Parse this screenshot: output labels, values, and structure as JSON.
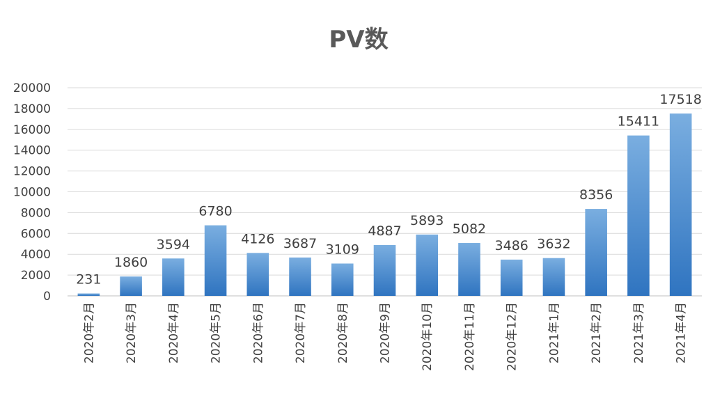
{
  "chart_data": {
    "type": "bar",
    "title": "PV数",
    "xlabel": "",
    "ylabel": "",
    "categories": [
      "2020年2月",
      "2020年3月",
      "2020年4月",
      "2020年5月",
      "2020年6月",
      "2020年7月",
      "2020年8月",
      "2020年9月",
      "2020年10月",
      "2020年11月",
      "2020年12月",
      "2021年1月",
      "2021年2月",
      "2021年3月",
      "2021年4月"
    ],
    "values": [
      231,
      1860,
      3594,
      6780,
      4126,
      3687,
      3109,
      4887,
      5893,
      5082,
      3486,
      3632,
      8356,
      15411,
      17518
    ],
    "ylim": [
      0,
      20000
    ],
    "yticks": [
      0,
      2000,
      4000,
      6000,
      8000,
      10000,
      12000,
      14000,
      16000,
      18000,
      20000
    ],
    "grid": true,
    "legend": "none",
    "bar_color_top": "#7aaee0",
    "bar_color_bottom": "#2f74c0"
  }
}
